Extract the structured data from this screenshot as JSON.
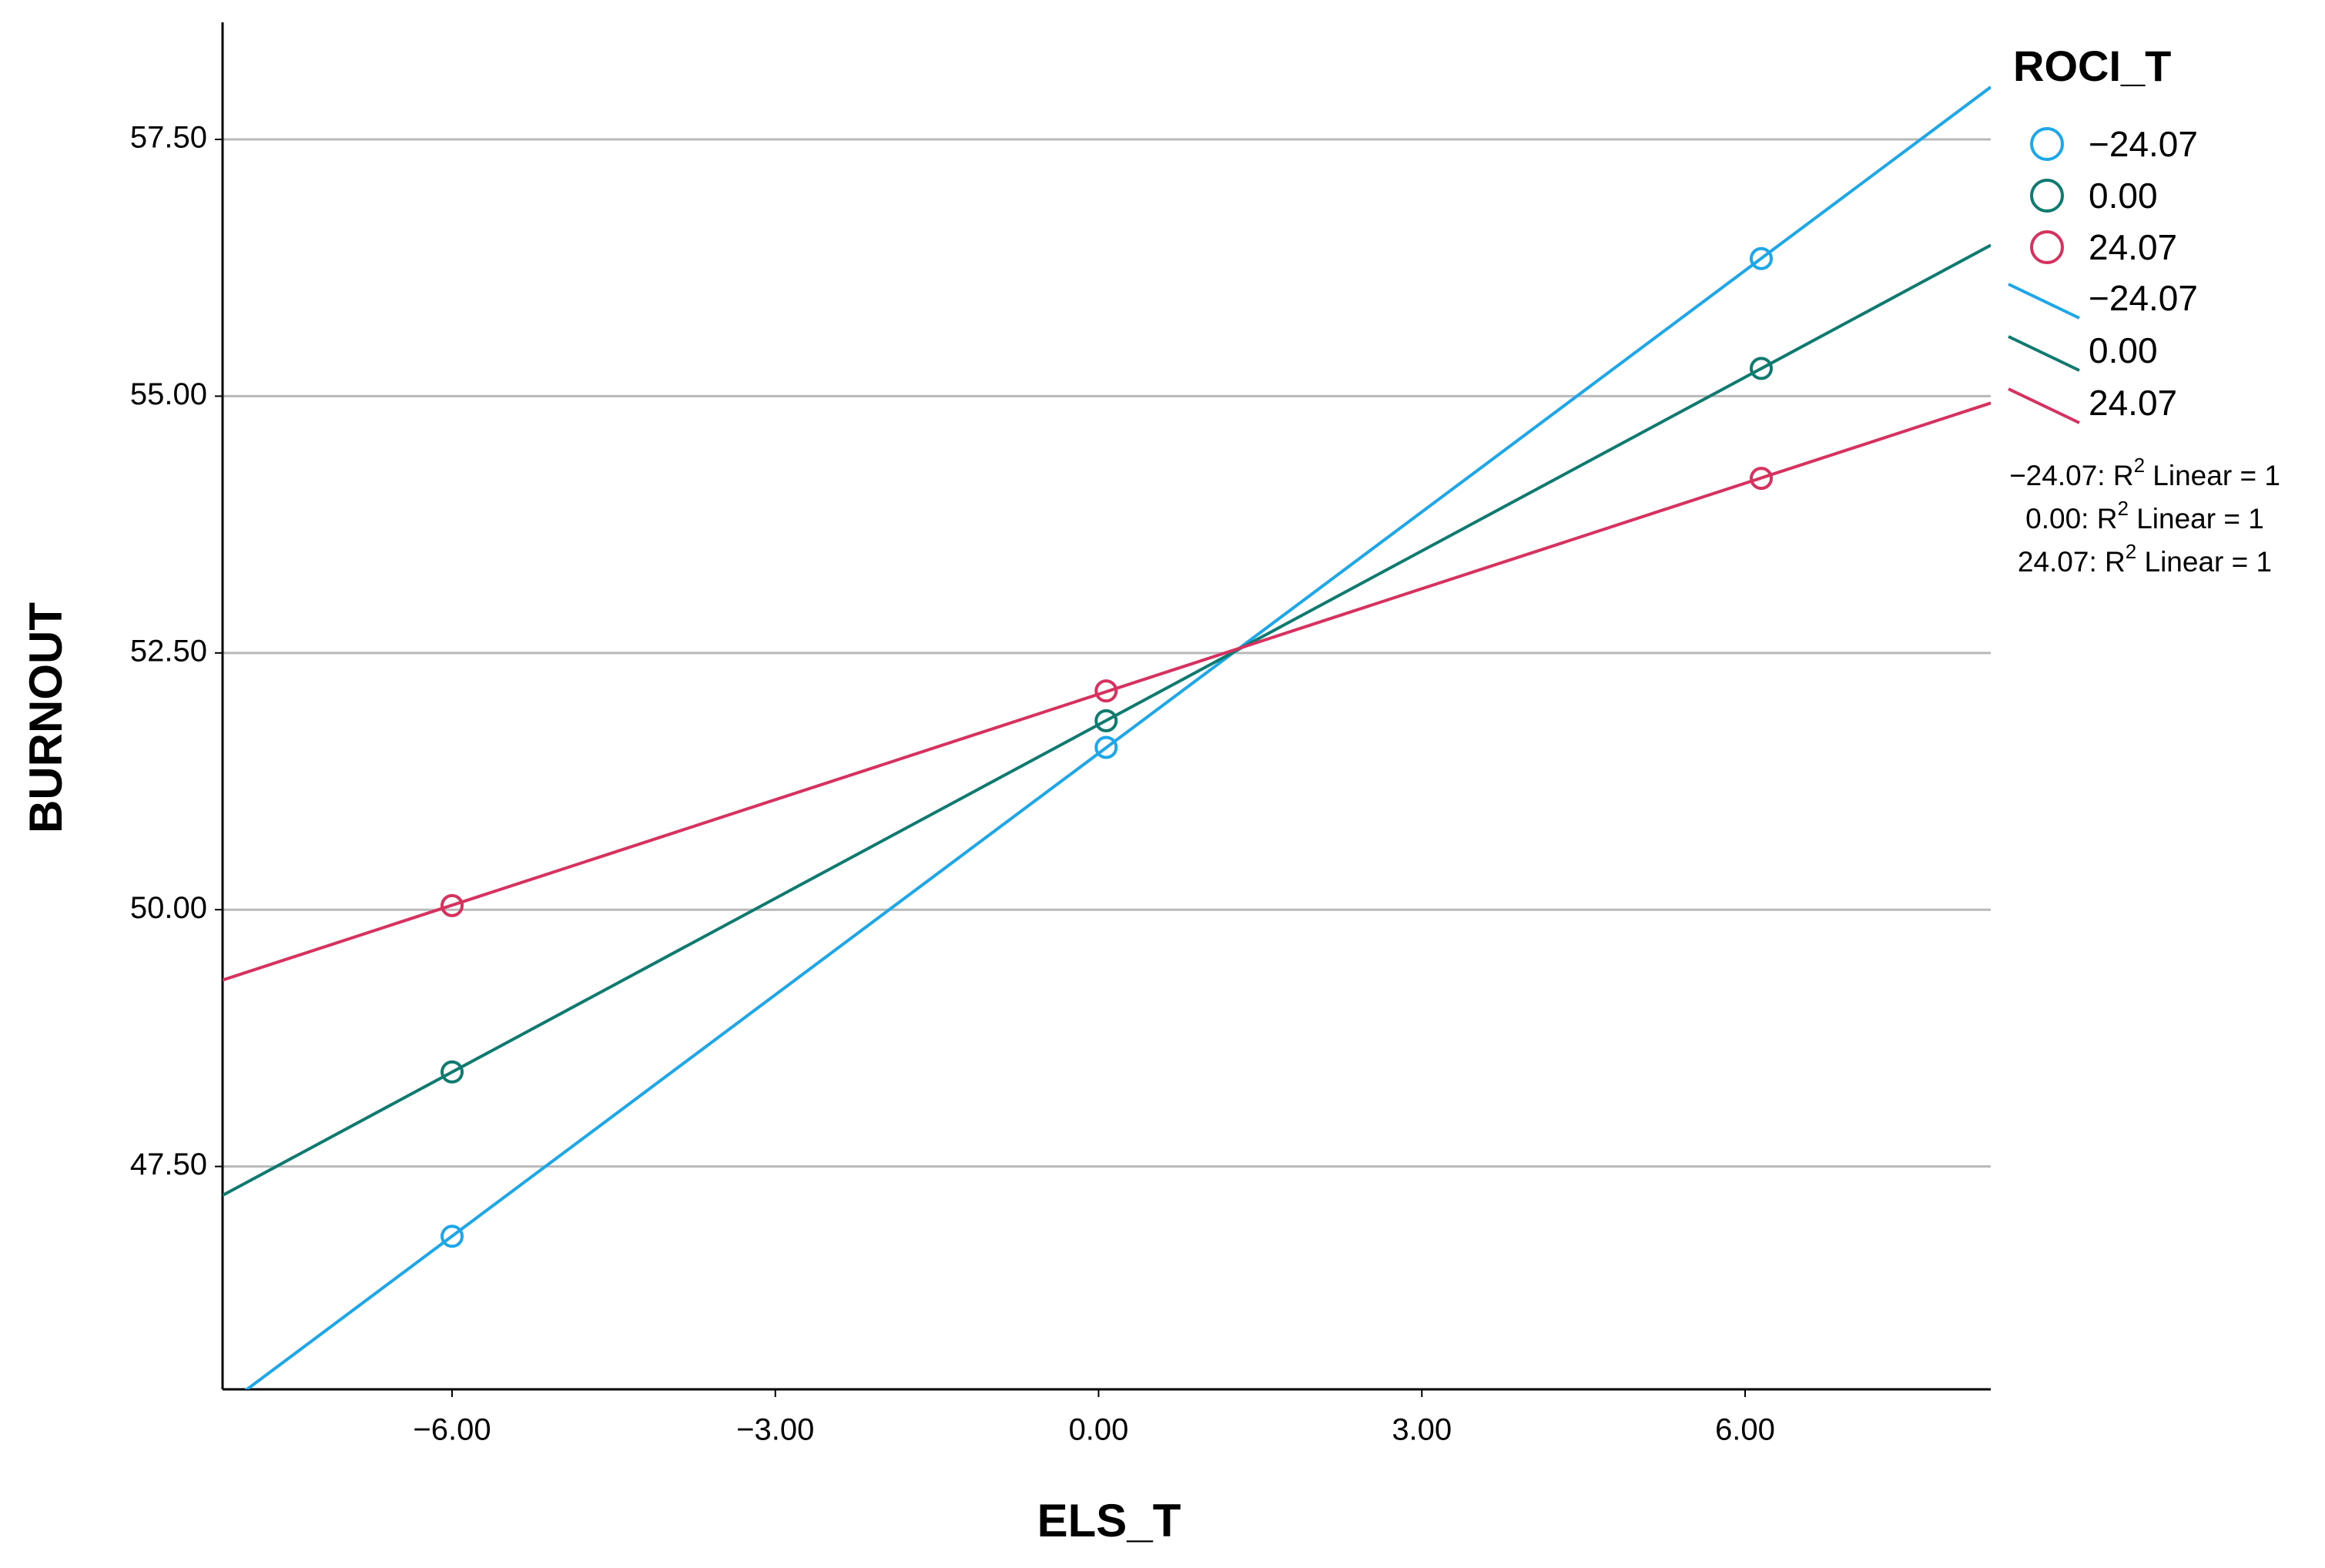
{
  "chart_data": {
    "type": "scatter",
    "x_label": "ELS_T",
    "y_label": "BURNOUT",
    "legend_title": "ROCI_T",
    "xlim": [
      -8.13,
      8.28
    ],
    "ylim": [
      45.33,
      58.64
    ],
    "xticks": [
      {
        "value": -6,
        "label": "−6.00"
      },
      {
        "value": -3,
        "label": "−3.00"
      },
      {
        "value": 0,
        "label": "0.00"
      },
      {
        "value": 3,
        "label": "3.00"
      },
      {
        "value": 6,
        "label": "6.00"
      }
    ],
    "yticks": [
      {
        "value": 47.5,
        "label": "47.50"
      },
      {
        "value": 50,
        "label": "50.00"
      },
      {
        "value": 52.5,
        "label": "52.50"
      },
      {
        "value": 55,
        "label": "55.00"
      },
      {
        "value": 57.5,
        "label": "57.50"
      }
    ],
    "grid": true,
    "fit_lines": true,
    "legend": "right",
    "series": [
      {
        "name": "−24.07",
        "color": "#1ea7e8",
        "x": [
          -6.0,
          0.07,
          6.15
        ],
        "values": [
          46.82,
          51.58,
          56.34
        ]
      },
      {
        "name": "0.00",
        "color": "#0f7a6f",
        "x": [
          -6.0,
          0.07,
          6.15
        ],
        "values": [
          48.42,
          51.84,
          55.27
        ]
      },
      {
        "name": "24.07",
        "color": "#d6315f",
        "x": [
          -6.0,
          0.07,
          6.15
        ],
        "values": [
          50.04,
          52.13,
          54.2
        ]
      }
    ],
    "fit_labels": [
      {
        "text": "−24.07: R",
        "sup": "2",
        "tail": " Linear = 1"
      },
      {
        "text": "0.00: R",
        "sup": "2",
        "tail": " Linear = 1"
      },
      {
        "text": "24.07: R",
        "sup": "2",
        "tail": " Linear = 1"
      }
    ]
  }
}
